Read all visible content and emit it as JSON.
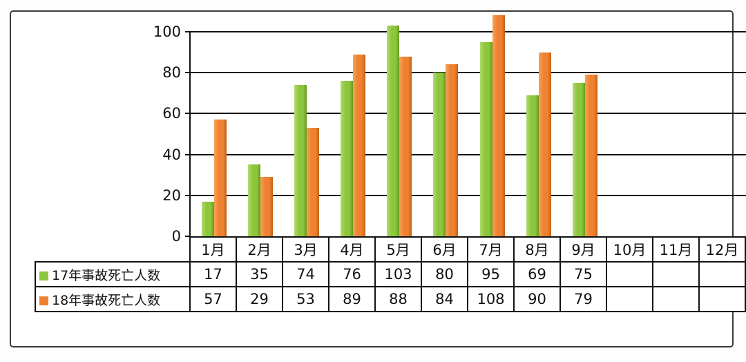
{
  "chart_data": {
    "type": "bar",
    "title": "",
    "xlabel": "",
    "ylabel": "",
    "ylim": [
      0,
      100
    ],
    "yticks": [
      0,
      20,
      40,
      60,
      80,
      100
    ],
    "grid": true,
    "legend_position": "table-left",
    "categories": [
      "1月",
      "2月",
      "3月",
      "4月",
      "5月",
      "6月",
      "7月",
      "8月",
      "9月",
      "10月",
      "11月",
      "12月"
    ],
    "series": [
      {
        "name": "17年事故死亡人数",
        "color": "#8CC63C",
        "color_light": "#B2DA6F",
        "color_dark": "#66991C",
        "values": [
          17,
          35,
          74,
          76,
          103,
          80,
          95,
          69,
          75,
          null,
          null,
          null
        ]
      },
      {
        "name": "18年事故死亡人数",
        "color": "#EF8230",
        "color_light": "#F6A359",
        "color_dark": "#C26115",
        "values": [
          57,
          29,
          53,
          89,
          88,
          84,
          108,
          90,
          79,
          null,
          null,
          null
        ]
      }
    ],
    "colors": {
      "gridline": "#111111",
      "card_border": "#3c3c3c",
      "background": "#ffffff",
      "text": "#111111"
    }
  }
}
